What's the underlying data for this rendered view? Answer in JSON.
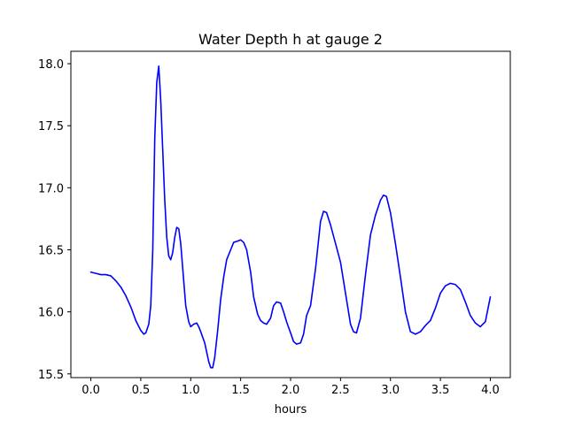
{
  "chart_data": {
    "type": "line",
    "title": "Water Depth h at gauge 2",
    "xlabel": "hours",
    "ylabel": "",
    "xlim": [
      -0.2,
      4.2
    ],
    "ylim": [
      15.47,
      18.1
    ],
    "xticks": [
      0.0,
      0.5,
      1.0,
      1.5,
      2.0,
      2.5,
      3.0,
      3.5,
      4.0
    ],
    "xtick_labels": [
      "0.0",
      "0.5",
      "1.0",
      "1.5",
      "2.0",
      "2.5",
      "3.0",
      "3.5",
      "4.0"
    ],
    "yticks": [
      15.5,
      16.0,
      16.5,
      17.0,
      17.5,
      18.0
    ],
    "ytick_labels": [
      "15.5",
      "16.0",
      "16.5",
      "17.0",
      "17.5",
      "18.0"
    ],
    "grid": false,
    "series": [
      {
        "color": "#0000ff",
        "x": [
          0.0,
          0.05,
          0.1,
          0.15,
          0.2,
          0.25,
          0.3,
          0.35,
          0.4,
          0.45,
          0.5,
          0.53,
          0.55,
          0.58,
          0.6,
          0.62,
          0.64,
          0.66,
          0.68,
          0.7,
          0.72,
          0.74,
          0.76,
          0.78,
          0.8,
          0.82,
          0.84,
          0.86,
          0.88,
          0.9,
          0.92,
          0.95,
          0.98,
          1.0,
          1.03,
          1.06,
          1.08,
          1.1,
          1.14,
          1.18,
          1.2,
          1.22,
          1.24,
          1.27,
          1.3,
          1.33,
          1.36,
          1.4,
          1.43,
          1.47,
          1.5,
          1.53,
          1.56,
          1.6,
          1.63,
          1.67,
          1.7,
          1.73,
          1.76,
          1.8,
          1.83,
          1.86,
          1.9,
          1.93,
          1.96,
          2.0,
          2.03,
          2.06,
          2.1,
          2.13,
          2.16,
          2.2,
          2.25,
          2.3,
          2.33,
          2.36,
          2.4,
          2.45,
          2.5,
          2.55,
          2.6,
          2.63,
          2.66,
          2.7,
          2.75,
          2.8,
          2.85,
          2.9,
          2.93,
          2.96,
          3.0,
          3.05,
          3.1,
          3.15,
          3.2,
          3.25,
          3.3,
          3.35,
          3.4,
          3.45,
          3.5,
          3.55,
          3.6,
          3.65,
          3.7,
          3.75,
          3.8,
          3.85,
          3.9,
          3.95,
          4.0
        ],
        "y": [
          16.32,
          16.31,
          16.3,
          16.3,
          16.29,
          16.25,
          16.2,
          16.13,
          16.04,
          15.93,
          15.85,
          15.82,
          15.83,
          15.9,
          16.05,
          16.5,
          17.4,
          17.85,
          17.98,
          17.7,
          17.3,
          16.9,
          16.6,
          16.45,
          16.42,
          16.48,
          16.6,
          16.68,
          16.67,
          16.55,
          16.35,
          16.05,
          15.92,
          15.88,
          15.9,
          15.91,
          15.88,
          15.84,
          15.75,
          15.6,
          15.55,
          15.55,
          15.63,
          15.85,
          16.1,
          16.28,
          16.42,
          16.5,
          16.56,
          16.57,
          16.58,
          16.56,
          16.5,
          16.32,
          16.12,
          15.98,
          15.93,
          15.91,
          15.9,
          15.95,
          16.05,
          16.08,
          16.07,
          16.0,
          15.92,
          15.83,
          15.76,
          15.74,
          15.75,
          15.82,
          15.97,
          16.05,
          16.35,
          16.73,
          16.81,
          16.8,
          16.7,
          16.55,
          16.4,
          16.15,
          15.9,
          15.84,
          15.83,
          15.95,
          16.3,
          16.62,
          16.78,
          16.9,
          16.94,
          16.93,
          16.8,
          16.55,
          16.28,
          16.0,
          15.84,
          15.82,
          15.84,
          15.89,
          15.93,
          16.03,
          16.15,
          16.21,
          16.23,
          16.22,
          16.18,
          16.08,
          15.97,
          15.91,
          15.88,
          15.92,
          16.12
        ]
      }
    ]
  }
}
